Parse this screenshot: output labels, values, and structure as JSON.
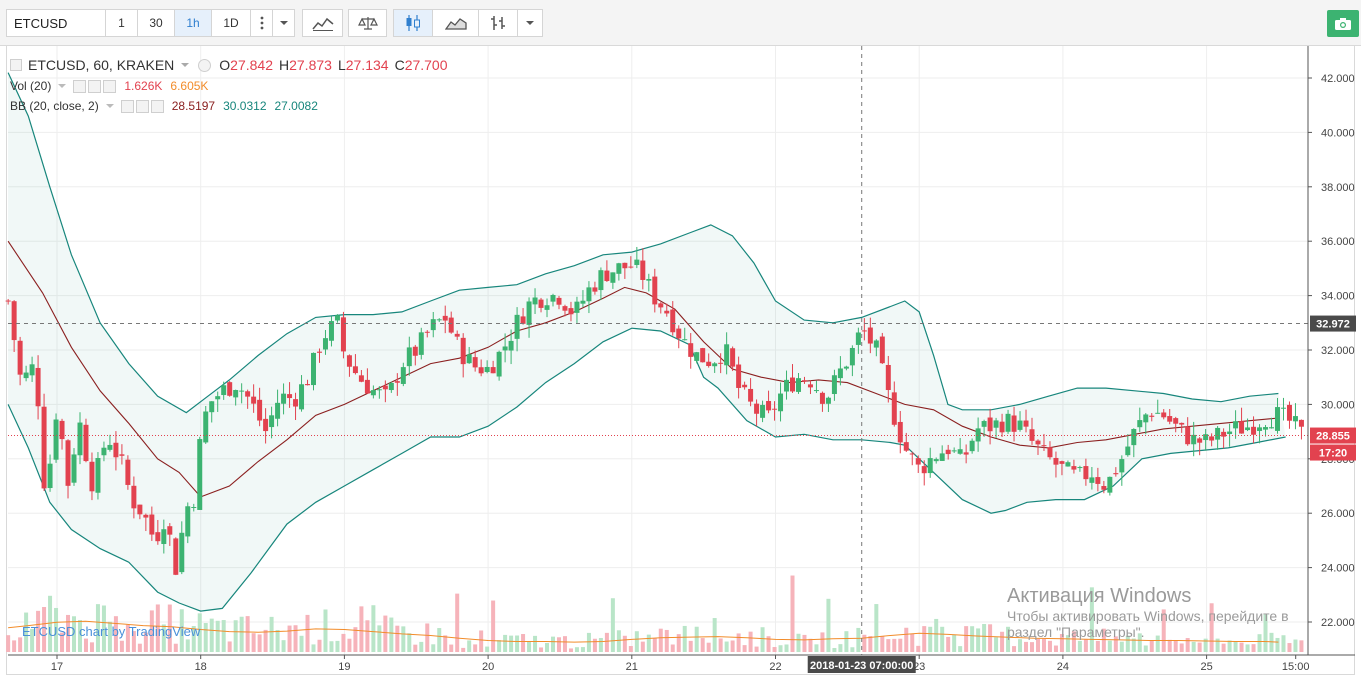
{
  "toolbar": {
    "symbol": "ETCUSD",
    "intervals": [
      "1",
      "30",
      "1h",
      "1D"
    ],
    "active_interval": "1h",
    "buttons": [
      "more-button",
      "dropdown-button",
      "indicators-button",
      "compare-button",
      "candles-style-button",
      "area-style-button",
      "bars-style-button",
      "dropdown-button-2"
    ],
    "camera_label": "snapshot"
  },
  "legend": {
    "title": "ETCUSD, 60, KRAKEN",
    "o_label": "O",
    "o_value": "27.842",
    "h_label": "H",
    "h_value": "27.873",
    "l_label": "L",
    "l_value": "27.134",
    "c_label": "C",
    "c_value": "27.700",
    "vol_title": "Vol (20)",
    "vol_value": "1.626K",
    "vol_ma": "6.605K",
    "bb_title": "BB (20, close, 2)",
    "bb_basis": "28.5197",
    "bb_upper": "30.0312",
    "bb_lower": "27.0082"
  },
  "watermark": "ETCUSD chart by TradingView",
  "activation": {
    "line1": "Активация Windows",
    "line2": "Чтобы активировать Windows, перейдите в",
    "line3": "раздел \"Параметры\"."
  },
  "colors": {
    "up": "#3cb371",
    "down": "#e2424f",
    "band": "#17867c",
    "basis": "#8b2020",
    "vol_ma": "#f28c2a",
    "last_price_label": "#e2424f",
    "crosshair_label": "#4a4a4a"
  },
  "chart_data": {
    "type": "candlestick",
    "title": "ETCUSD, 60, KRAKEN",
    "y_axis_ticks": [
      "42.000",
      "40.000",
      "38.000",
      "36.000",
      "34.000",
      "32.000",
      "30.000",
      "28.000",
      "26.000",
      "24.000",
      "22.000"
    ],
    "ylim": [
      21,
      43.1
    ],
    "x_axis_ticks": [
      "17",
      "18",
      "19",
      "20",
      "21",
      "22",
      "23",
      "24",
      "25",
      "15:00"
    ],
    "x_tick_positions": [
      0,
      1,
      2,
      3,
      4,
      5,
      6,
      7,
      8,
      8.62
    ],
    "x_range": [
      -0.34,
      8.7
    ],
    "last_price": "28.855",
    "countdown": "17:20",
    "crosshair_price": "32.972",
    "crosshair_x": 5.6,
    "crosshair_time": "2018-01-23 07:00:00",
    "upper_band": [
      [
        -0.34,
        42.2
      ],
      [
        -0.2,
        40.6
      ],
      [
        -0.05,
        38.0
      ],
      [
        0.1,
        35.5
      ],
      [
        0.3,
        33.0
      ],
      [
        0.5,
        31.5
      ],
      [
        0.7,
        30.3
      ],
      [
        0.9,
        29.7
      ],
      [
        1.05,
        30.3
      ],
      [
        1.2,
        30.9
      ],
      [
        1.4,
        31.8
      ],
      [
        1.6,
        32.6
      ],
      [
        1.8,
        33.2
      ],
      [
        2.0,
        33.3
      ],
      [
        2.2,
        33.3
      ],
      [
        2.4,
        33.4
      ],
      [
        2.6,
        33.8
      ],
      [
        2.8,
        34.2
      ],
      [
        3.0,
        34.3
      ],
      [
        3.2,
        34.4
      ],
      [
        3.4,
        34.8
      ],
      [
        3.6,
        35.1
      ],
      [
        3.8,
        35.5
      ],
      [
        4.0,
        35.6
      ],
      [
        4.2,
        35.9
      ],
      [
        4.4,
        36.3
      ],
      [
        4.55,
        36.6
      ],
      [
        4.7,
        36.2
      ],
      [
        4.85,
        35.2
      ],
      [
        5.0,
        33.8
      ],
      [
        5.2,
        33.1
      ],
      [
        5.4,
        33.0
      ],
      [
        5.6,
        33.2
      ],
      [
        5.8,
        33.6
      ],
      [
        5.9,
        33.8
      ],
      [
        6.0,
        33.4
      ],
      [
        6.1,
        31.8
      ],
      [
        6.2,
        30.0
      ],
      [
        6.3,
        29.8
      ],
      [
        6.5,
        29.8
      ],
      [
        6.7,
        30.0
      ],
      [
        6.9,
        30.3
      ],
      [
        7.1,
        30.6
      ],
      [
        7.3,
        30.6
      ],
      [
        7.5,
        30.5
      ],
      [
        7.7,
        30.4
      ],
      [
        7.9,
        30.2
      ],
      [
        8.1,
        30.1
      ],
      [
        8.3,
        30.3
      ],
      [
        8.5,
        30.4
      ]
    ],
    "lower_band": [
      [
        -0.34,
        30.0
      ],
      [
        -0.2,
        28.4
      ],
      [
        -0.05,
        26.4
      ],
      [
        0.1,
        25.4
      ],
      [
        0.3,
        24.7
      ],
      [
        0.5,
        24.2
      ],
      [
        0.7,
        23.1
      ],
      [
        0.85,
        22.7
      ],
      [
        1.0,
        22.4
      ],
      [
        1.15,
        22.5
      ],
      [
        1.35,
        23.8
      ],
      [
        1.6,
        25.6
      ],
      [
        1.8,
        26.4
      ],
      [
        2.0,
        27.0
      ],
      [
        2.2,
        27.6
      ],
      [
        2.4,
        28.2
      ],
      [
        2.6,
        28.8
      ],
      [
        2.8,
        28.8
      ],
      [
        3.0,
        29.2
      ],
      [
        3.2,
        29.9
      ],
      [
        3.4,
        30.8
      ],
      [
        3.6,
        31.5
      ],
      [
        3.8,
        32.3
      ],
      [
        4.0,
        32.8
      ],
      [
        4.2,
        32.7
      ],
      [
        4.4,
        32.2
      ],
      [
        4.5,
        31.0
      ],
      [
        4.6,
        30.6
      ],
      [
        4.8,
        29.4
      ],
      [
        5.0,
        28.8
      ],
      [
        5.2,
        28.9
      ],
      [
        5.4,
        28.7
      ],
      [
        5.6,
        28.7
      ],
      [
        5.8,
        28.6
      ],
      [
        5.9,
        28.5
      ],
      [
        6.1,
        27.5
      ],
      [
        6.3,
        26.5
      ],
      [
        6.5,
        26.0
      ],
      [
        6.6,
        26.1
      ],
      [
        6.75,
        26.4
      ],
      [
        6.95,
        26.5
      ],
      [
        7.15,
        26.5
      ],
      [
        7.35,
        27.0
      ],
      [
        7.55,
        28.0
      ],
      [
        7.75,
        28.2
      ],
      [
        7.95,
        28.3
      ],
      [
        8.15,
        28.4
      ],
      [
        8.35,
        28.6
      ],
      [
        8.55,
        28.8
      ]
    ],
    "basis": [
      [
        -0.34,
        36.0
      ],
      [
        -0.1,
        34.1
      ],
      [
        0.1,
        32.1
      ],
      [
        0.3,
        30.5
      ],
      [
        0.5,
        29.3
      ],
      [
        0.7,
        28.0
      ],
      [
        0.85,
        27.5
      ],
      [
        1.0,
        26.6
      ],
      [
        1.2,
        27.0
      ],
      [
        1.4,
        27.9
      ],
      [
        1.6,
        28.7
      ],
      [
        1.8,
        29.6
      ],
      [
        2.0,
        30.0
      ],
      [
        2.2,
        30.5
      ],
      [
        2.4,
        31.0
      ],
      [
        2.6,
        31.5
      ],
      [
        2.8,
        31.7
      ],
      [
        3.0,
        32.1
      ],
      [
        3.2,
        32.7
      ],
      [
        3.4,
        33.0
      ],
      [
        3.6,
        33.4
      ],
      [
        3.8,
        33.9
      ],
      [
        3.95,
        34.3
      ],
      [
        4.1,
        34.1
      ],
      [
        4.3,
        33.5
      ],
      [
        4.5,
        32.3
      ],
      [
        4.7,
        31.3
      ],
      [
        4.9,
        31.0
      ],
      [
        5.1,
        30.8
      ],
      [
        5.3,
        30.9
      ],
      [
        5.5,
        30.8
      ],
      [
        5.7,
        30.4
      ],
      [
        5.9,
        30.0
      ],
      [
        6.1,
        29.8
      ],
      [
        6.3,
        29.2
      ],
      [
        6.5,
        28.8
      ],
      [
        6.7,
        28.5
      ],
      [
        6.9,
        28.4
      ],
      [
        7.1,
        28.6
      ],
      [
        7.3,
        28.7
      ],
      [
        7.5,
        28.9
      ],
      [
        7.7,
        29.1
      ],
      [
        7.9,
        29.2
      ],
      [
        8.1,
        29.3
      ],
      [
        8.3,
        29.4
      ],
      [
        8.5,
        29.5
      ]
    ],
    "volume_ma": [
      [
        -0.34,
        4.4
      ],
      [
        -0.2,
        4.8
      ],
      [
        0.0,
        5.4
      ],
      [
        0.2,
        5.6
      ],
      [
        0.4,
        5.2
      ],
      [
        0.6,
        4.8
      ],
      [
        0.8,
        4.6
      ],
      [
        1.0,
        4.1
      ],
      [
        1.2,
        3.7
      ],
      [
        1.4,
        3.6
      ],
      [
        1.6,
        3.8
      ],
      [
        1.8,
        4.2
      ],
      [
        2.0,
        4.1
      ],
      [
        2.2,
        3.7
      ],
      [
        2.4,
        3.3
      ],
      [
        2.6,
        3.0
      ],
      [
        2.8,
        2.5
      ],
      [
        3.0,
        2.1
      ],
      [
        3.2,
        1.9
      ],
      [
        3.4,
        1.9
      ],
      [
        3.6,
        1.8
      ],
      [
        3.8,
        1.9
      ],
      [
        4.0,
        2.3
      ],
      [
        4.2,
        2.6
      ],
      [
        4.4,
        2.7
      ],
      [
        4.6,
        2.8
      ],
      [
        4.8,
        2.6
      ],
      [
        5.0,
        2.3
      ],
      [
        5.2,
        2.2
      ],
      [
        5.4,
        2.4
      ],
      [
        5.6,
        2.5
      ],
      [
        5.8,
        3.0
      ],
      [
        6.0,
        3.4
      ],
      [
        6.2,
        3.2
      ],
      [
        6.4,
        2.9
      ],
      [
        6.6,
        2.7
      ],
      [
        6.8,
        2.5
      ],
      [
        7.0,
        2.4
      ],
      [
        7.2,
        2.3
      ],
      [
        7.4,
        2.2
      ],
      [
        7.6,
        2.1
      ],
      [
        7.8,
        2.1
      ],
      [
        8.0,
        2.0
      ],
      [
        8.2,
        1.9
      ],
      [
        8.4,
        1.9
      ],
      [
        8.5,
        1.8
      ]
    ],
    "volume_max": 20,
    "candle_anchors": [
      [
        -0.34,
        33.8
      ],
      [
        -0.25,
        30.8
      ],
      [
        -0.15,
        31.5
      ],
      [
        -0.08,
        26.5
      ],
      [
        0.0,
        30.0
      ],
      [
        0.08,
        27.0
      ],
      [
        0.15,
        29.5
      ],
      [
        0.25,
        27.0
      ],
      [
        0.35,
        28.9
      ],
      [
        0.45,
        27.8
      ],
      [
        0.52,
        26.5
      ],
      [
        0.6,
        26.0
      ],
      [
        0.68,
        25.0
      ],
      [
        0.76,
        26.0
      ],
      [
        0.82,
        23.8
      ],
      [
        0.9,
        26.2
      ],
      [
        0.95,
        26.5
      ],
      [
        1.0,
        28.8
      ],
      [
        1.05,
        30.0
      ],
      [
        1.15,
        30.5
      ],
      [
        1.25,
        30.8
      ],
      [
        1.35,
        30.1
      ],
      [
        1.45,
        29.0
      ],
      [
        1.55,
        30.3
      ],
      [
        1.65,
        30.2
      ],
      [
        1.75,
        31.0
      ],
      [
        1.85,
        32.5
      ],
      [
        1.95,
        33.0
      ],
      [
        2.0,
        31.8
      ],
      [
        2.1,
        31.0
      ],
      [
        2.2,
        30.5
      ],
      [
        2.3,
        30.2
      ],
      [
        2.4,
        31.5
      ],
      [
        2.5,
        32.0
      ],
      [
        2.6,
        32.8
      ],
      [
        2.7,
        33.2
      ],
      [
        2.8,
        32.0
      ],
      [
        2.9,
        31.4
      ],
      [
        3.0,
        31.3
      ],
      [
        3.1,
        32.0
      ],
      [
        3.2,
        33.0
      ],
      [
        3.3,
        33.8
      ],
      [
        3.4,
        34.0
      ],
      [
        3.5,
        34.0
      ],
      [
        3.6,
        33.3
      ],
      [
        3.7,
        34.2
      ],
      [
        3.8,
        34.8
      ],
      [
        3.9,
        35.0
      ],
      [
        4.0,
        35.1
      ],
      [
        4.07,
        34.8
      ],
      [
        4.15,
        34.0
      ],
      [
        4.25,
        33.4
      ],
      [
        4.35,
        32.4
      ],
      [
        4.45,
        31.8
      ],
      [
        4.55,
        31.6
      ],
      [
        4.65,
        32.0
      ],
      [
        4.75,
        30.5
      ],
      [
        4.85,
        29.8
      ],
      [
        4.95,
        29.5
      ],
      [
        5.05,
        30.5
      ],
      [
        5.15,
        31.0
      ],
      [
        5.25,
        30.9
      ],
      [
        5.35,
        30.2
      ],
      [
        5.45,
        31.2
      ],
      [
        5.55,
        32.1
      ],
      [
        5.6,
        32.8
      ],
      [
        5.7,
        32.0
      ],
      [
        5.8,
        30.0
      ],
      [
        5.9,
        28.4
      ],
      [
        6.0,
        27.6
      ],
      [
        6.1,
        28.1
      ],
      [
        6.2,
        28.4
      ],
      [
        6.3,
        27.9
      ],
      [
        6.4,
        29.1
      ],
      [
        6.5,
        29.2
      ],
      [
        6.6,
        29.4
      ],
      [
        6.7,
        29.2
      ],
      [
        6.8,
        28.5
      ],
      [
        6.9,
        28.0
      ],
      [
        7.0,
        27.6
      ],
      [
        7.1,
        27.3
      ],
      [
        7.2,
        27.5
      ],
      [
        7.3,
        27.0
      ],
      [
        7.4,
        27.9
      ],
      [
        7.5,
        29.0
      ],
      [
        7.6,
        29.8
      ],
      [
        7.7,
        29.6
      ],
      [
        7.8,
        29.1
      ],
      [
        7.9,
        28.7
      ],
      [
        8.0,
        28.6
      ],
      [
        8.1,
        28.9
      ],
      [
        8.2,
        29.1
      ],
      [
        8.3,
        29.2
      ],
      [
        8.4,
        29.5
      ],
      [
        8.5,
        29.6
      ],
      [
        8.6,
        29.3
      ],
      [
        8.66,
        28.9
      ]
    ]
  }
}
